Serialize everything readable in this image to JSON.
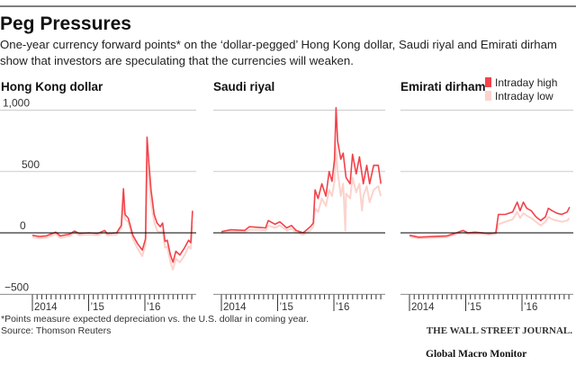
{
  "title": "Peg Pressures",
  "subtitle_lines": [
    "One-year currency forward points* on the ‘dollar-pegged’ Hong Kong dollar, Saudi riyal and Emirati dirham",
    "show that investors are speculating that the currencies will weaken."
  ],
  "footnote": "*Points measure expected depreciation vs. the U.S. dollar in coming year.",
  "source": "Source: Thomson Reuters",
  "publisher": "THE WALL STREET JOURNAL.",
  "watermark": "Global Macro Monitor",
  "colors": {
    "high": "#f2424a",
    "low": "#fbd3cc",
    "grid": "#cccccc",
    "zero": "#000000"
  },
  "legend": [
    {
      "label": "Intraday high",
      "color": "#f2424a"
    },
    {
      "label": "Intraday low",
      "color": "#fbd3cc"
    }
  ],
  "chart_data": [
    {
      "type": "line",
      "title": "Hong Kong dollar",
      "ylim": [
        -500,
        1000
      ],
      "yticks": [
        "1,000",
        "500",
        "0",
        "−500"
      ],
      "ytick_values": [
        1000,
        500,
        0,
        -500
      ],
      "xticks": [
        "2014",
        "’15",
        "’16"
      ],
      "grid": true,
      "series": [
        {
          "name": "Intraday high",
          "points": [
            [
              "2014-01-01",
              -20
            ],
            [
              "2014-02-15",
              -30
            ],
            [
              "2014-04-01",
              -25
            ],
            [
              "2014-06-01",
              5
            ],
            [
              "2014-07-01",
              -25
            ],
            [
              "2014-09-01",
              -10
            ],
            [
              "2014-10-01",
              15
            ],
            [
              "2014-11-01",
              -5
            ],
            [
              "2015-01-01",
              0
            ],
            [
              "2015-03-01",
              -5
            ],
            [
              "2015-04-15",
              20
            ],
            [
              "2015-05-01",
              -5
            ],
            [
              "2015-07-01",
              0
            ],
            [
              "2015-08-01",
              60
            ],
            [
              "2015-08-15",
              360
            ],
            [
              "2015-08-25",
              150
            ],
            [
              "2015-09-15",
              120
            ],
            [
              "2015-10-15",
              -20
            ],
            [
              "2015-11-15",
              -90
            ],
            [
              "2015-12-15",
              -140
            ],
            [
              "2016-01-05",
              -50
            ],
            [
              "2016-01-15",
              780
            ],
            [
              "2016-01-25",
              600
            ],
            [
              "2016-02-10",
              350
            ],
            [
              "2016-03-01",
              150
            ],
            [
              "2016-03-20",
              80
            ],
            [
              "2016-04-10",
              50
            ],
            [
              "2016-04-25",
              80
            ],
            [
              "2016-05-10",
              -70
            ],
            [
              "2016-05-25",
              -60
            ],
            [
              "2016-06-15",
              -180
            ],
            [
              "2016-07-01",
              -240
            ],
            [
              "2016-07-20",
              -150
            ],
            [
              "2016-08-15",
              -180
            ],
            [
              "2016-09-15",
              -120
            ],
            [
              "2016-10-10",
              -60
            ],
            [
              "2016-10-25",
              -80
            ],
            [
              "2016-11-05",
              180
            ]
          ]
        },
        {
          "name": "Intraday low",
          "points": [
            [
              "2014-01-01",
              -35
            ],
            [
              "2014-02-15",
              -45
            ],
            [
              "2014-04-01",
              -40
            ],
            [
              "2014-06-01",
              -10
            ],
            [
              "2014-07-01",
              -40
            ],
            [
              "2014-09-01",
              -25
            ],
            [
              "2014-10-01",
              0
            ],
            [
              "2014-11-01",
              -20
            ],
            [
              "2015-01-01",
              -15
            ],
            [
              "2015-03-01",
              -20
            ],
            [
              "2015-04-15",
              5
            ],
            [
              "2015-05-01",
              -20
            ],
            [
              "2015-07-01",
              -15
            ],
            [
              "2015-08-01",
              40
            ],
            [
              "2015-08-15",
              250
            ],
            [
              "2015-08-25",
              110
            ],
            [
              "2015-09-15",
              90
            ],
            [
              "2015-10-15",
              -50
            ],
            [
              "2015-11-15",
              -130
            ],
            [
              "2015-12-15",
              -190
            ],
            [
              "2016-01-05",
              -90
            ],
            [
              "2016-01-15",
              600
            ],
            [
              "2016-01-25",
              450
            ],
            [
              "2016-02-10",
              250
            ],
            [
              "2016-03-01",
              90
            ],
            [
              "2016-03-20",
              20
            ],
            [
              "2016-04-10",
              0
            ],
            [
              "2016-04-25",
              20
            ],
            [
              "2016-05-10",
              -120
            ],
            [
              "2016-05-25",
              -110
            ],
            [
              "2016-06-15",
              -240
            ],
            [
              "2016-07-01",
              -300
            ],
            [
              "2016-07-20",
              -210
            ],
            [
              "2016-08-15",
              -240
            ],
            [
              "2016-09-15",
              -180
            ],
            [
              "2016-10-10",
              -110
            ],
            [
              "2016-10-25",
              -130
            ],
            [
              "2016-11-05",
              60
            ]
          ]
        }
      ]
    },
    {
      "type": "line",
      "title": "Saudi riyal",
      "ylim": [
        -500,
        1000
      ],
      "xticks": [
        "2014",
        "’15",
        "’16"
      ],
      "grid": true,
      "series": [
        {
          "name": "Intraday high",
          "points": [
            [
              "2014-01-01",
              10
            ],
            [
              "2014-03-01",
              25
            ],
            [
              "2014-06-01",
              20
            ],
            [
              "2014-07-01",
              50
            ],
            [
              "2014-09-01",
              45
            ],
            [
              "2014-10-15",
              40
            ],
            [
              "2014-11-01",
              100
            ],
            [
              "2014-12-15",
              70
            ],
            [
              "2015-01-15",
              90
            ],
            [
              "2015-03-01",
              40
            ],
            [
              "2015-04-01",
              60
            ],
            [
              "2015-05-01",
              20
            ],
            [
              "2015-06-15",
              0
            ],
            [
              "2015-08-01",
              50
            ],
            [
              "2015-08-20",
              80
            ],
            [
              "2015-09-01",
              350
            ],
            [
              "2015-09-20",
              280
            ],
            [
              "2015-10-15",
              400
            ],
            [
              "2015-11-10",
              300
            ],
            [
              "2015-12-01",
              500
            ],
            [
              "2015-12-20",
              420
            ],
            [
              "2016-01-05",
              600
            ],
            [
              "2016-01-15",
              1020
            ],
            [
              "2016-01-25",
              750
            ],
            [
              "2016-02-15",
              600
            ],
            [
              "2016-03-01",
              650
            ],
            [
              "2016-03-20",
              450
            ],
            [
              "2016-04-15",
              400
            ],
            [
              "2016-05-01",
              640
            ],
            [
              "2016-05-25",
              480
            ],
            [
              "2016-06-15",
              620
            ],
            [
              "2016-07-10",
              400
            ],
            [
              "2016-08-01",
              550
            ],
            [
              "2016-08-20",
              400
            ],
            [
              "2016-09-15",
              550
            ],
            [
              "2016-10-15",
              550
            ],
            [
              "2016-11-01",
              400
            ]
          ]
        },
        {
          "name": "Intraday low",
          "points": [
            [
              "2014-01-01",
              0
            ],
            [
              "2014-03-01",
              10
            ],
            [
              "2014-06-01",
              5
            ],
            [
              "2014-07-01",
              25
            ],
            [
              "2014-09-01",
              25
            ],
            [
              "2014-10-15",
              20
            ],
            [
              "2014-11-01",
              60
            ],
            [
              "2014-12-15",
              40
            ],
            [
              "2015-01-15",
              60
            ],
            [
              "2015-03-01",
              20
            ],
            [
              "2015-04-01",
              35
            ],
            [
              "2015-05-01",
              5
            ],
            [
              "2015-06-15",
              -15
            ],
            [
              "2015-08-01",
              20
            ],
            [
              "2015-08-20",
              50
            ],
            [
              "2015-09-01",
              200
            ],
            [
              "2015-09-20",
              170
            ],
            [
              "2015-10-15",
              280
            ],
            [
              "2015-11-10",
              220
            ],
            [
              "2015-12-01",
              350
            ],
            [
              "2015-12-20",
              300
            ],
            [
              "2016-01-05",
              420
            ],
            [
              "2016-01-15",
              700
            ],
            [
              "2016-01-25",
              500
            ],
            [
              "2016-02-15",
              300
            ],
            [
              "2016-03-01",
              400
            ],
            [
              "2016-03-15",
              20
            ],
            [
              "2016-03-20",
              320
            ],
            [
              "2016-04-15",
              280
            ],
            [
              "2016-05-01",
              450
            ],
            [
              "2016-05-25",
              330
            ],
            [
              "2016-06-15",
              400
            ],
            [
              "2016-07-01",
              180
            ],
            [
              "2016-07-10",
              300
            ],
            [
              "2016-08-01",
              380
            ],
            [
              "2016-08-20",
              250
            ],
            [
              "2016-09-15",
              350
            ],
            [
              "2016-10-15",
              380
            ],
            [
              "2016-11-01",
              300
            ]
          ]
        }
      ]
    },
    {
      "type": "line",
      "title": "Emirati dirham",
      "ylim": [
        -500,
        1000
      ],
      "xticks": [
        "2014",
        "’15",
        "’16"
      ],
      "grid": true,
      "series": [
        {
          "name": "Intraday high",
          "points": [
            [
              "2014-01-01",
              -20
            ],
            [
              "2014-03-01",
              -35
            ],
            [
              "2014-06-01",
              -30
            ],
            [
              "2014-09-01",
              -25
            ],
            [
              "2014-11-01",
              0
            ],
            [
              "2014-12-15",
              20
            ],
            [
              "2015-01-15",
              0
            ],
            [
              "2015-03-01",
              5
            ],
            [
              "2015-06-01",
              -5
            ],
            [
              "2015-07-15",
              0
            ],
            [
              "2015-08-01",
              150
            ],
            [
              "2015-09-15",
              150
            ],
            [
              "2015-11-01",
              170
            ],
            [
              "2015-12-01",
              250
            ],
            [
              "2015-12-20",
              180
            ],
            [
              "2016-01-10",
              250
            ],
            [
              "2016-02-01",
              200
            ],
            [
              "2016-03-01",
              180
            ],
            [
              "2016-04-01",
              130
            ],
            [
              "2016-05-01",
              100
            ],
            [
              "2016-06-01",
              130
            ],
            [
              "2016-06-20",
              200
            ],
            [
              "2016-07-15",
              180
            ],
            [
              "2016-08-15",
              160
            ],
            [
              "2016-09-15",
              150
            ],
            [
              "2016-10-20",
              170
            ],
            [
              "2016-11-05",
              210
            ]
          ]
        },
        {
          "name": "Intraday low",
          "points": [
            [
              "2014-01-01",
              -30
            ],
            [
              "2014-03-01",
              -45
            ],
            [
              "2014-06-01",
              -40
            ],
            [
              "2014-09-01",
              -35
            ],
            [
              "2014-11-01",
              -10
            ],
            [
              "2014-12-15",
              10
            ],
            [
              "2015-01-15",
              -10
            ],
            [
              "2015-03-01",
              -5
            ],
            [
              "2015-06-01",
              -15
            ],
            [
              "2015-07-15",
              -10
            ],
            [
              "2015-08-01",
              70
            ],
            [
              "2015-09-15",
              90
            ],
            [
              "2015-11-01",
              110
            ],
            [
              "2015-12-01",
              170
            ],
            [
              "2015-12-20",
              120
            ],
            [
              "2016-01-10",
              160
            ],
            [
              "2016-02-01",
              140
            ],
            [
              "2016-03-01",
              120
            ],
            [
              "2016-04-01",
              90
            ],
            [
              "2016-05-01",
              60
            ],
            [
              "2016-06-01",
              90
            ],
            [
              "2016-06-20",
              130
            ],
            [
              "2016-07-15",
              110
            ],
            [
              "2016-08-15",
              100
            ],
            [
              "2016-09-15",
              90
            ],
            [
              "2016-10-20",
              100
            ],
            [
              "2016-11-05",
              120
            ]
          ]
        }
      ]
    }
  ]
}
